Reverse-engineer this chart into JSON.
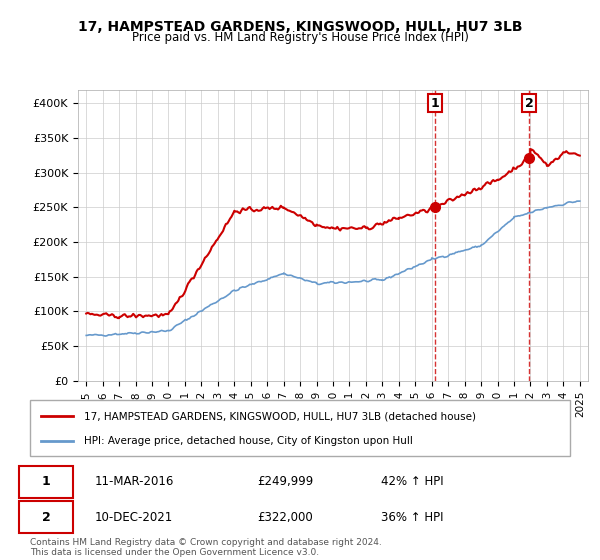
{
  "title": "17, HAMPSTEAD GARDENS, KINGSWOOD, HULL, HU7 3LB",
  "subtitle": "Price paid vs. HM Land Registry's House Price Index (HPI)",
  "legend_line1": "17, HAMPSTEAD GARDENS, KINGSWOOD, HULL, HU7 3LB (detached house)",
  "legend_line2": "HPI: Average price, detached house, City of Kingston upon Hull",
  "annotation1_label": "1",
  "annotation1_date": "11-MAR-2016",
  "annotation1_price": "£249,999",
  "annotation1_hpi": "42% ↑ HPI",
  "annotation2_label": "2",
  "annotation2_date": "10-DEC-2021",
  "annotation2_price": "£322,000",
  "annotation2_hpi": "36% ↑ HPI",
  "footer": "Contains HM Land Registry data © Crown copyright and database right 2024.\nThis data is licensed under the Open Government Licence v3.0.",
  "red_color": "#cc0000",
  "blue_color": "#6699cc",
  "annotation_box_color": "#cc0000",
  "background_color": "#ffffff",
  "grid_color": "#cccccc",
  "ylim": [
    0,
    420000
  ],
  "yticks": [
    0,
    50000,
    100000,
    150000,
    200000,
    250000,
    300000,
    350000,
    400000
  ],
  "ytick_labels": [
    "£0",
    "£50K",
    "£100K",
    "£150K",
    "£200K",
    "£250K",
    "£300K",
    "£350K",
    "£400K"
  ],
  "marker1_x": 2016.2,
  "marker1_y": 249999,
  "marker2_x": 2021.92,
  "marker2_y": 322000,
  "vline1_x": 2016.2,
  "vline2_x": 2021.92,
  "xmin": 1994.5,
  "xmax": 2025.5
}
